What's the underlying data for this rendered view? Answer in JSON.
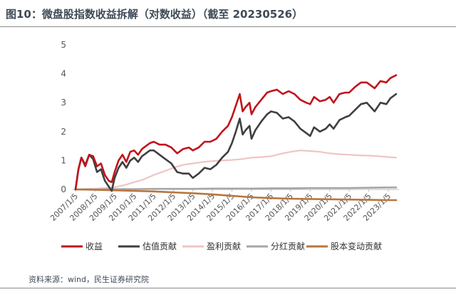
{
  "title": "图10：微盘股指数收益拆解（对数收益）（截至 20230526）",
  "source": "资料来源：wind，民生证券研究院",
  "chart_data": {
    "type": "line",
    "title": "图10：微盘股指数收益拆解（对数收益）（截至 20230526）",
    "xlabel": "",
    "ylabel": "",
    "ylim": [
      0,
      5
    ],
    "yticks": [
      "0",
      "1",
      "2",
      "3",
      "4",
      "5"
    ],
    "x_tick_labels": [
      "2007/1/5",
      "2008/1/5",
      "2009/1/5",
      "2010/1/5",
      "2011/1/5",
      "2012/1/5",
      "2013/1/5",
      "2014/1/5",
      "2015/1/5",
      "2016/1/5",
      "2017/1/5",
      "2018/1/5",
      "2019/1/5",
      "2020/1/5",
      "2021/1/5",
      "2022/1/5",
      "2023/1/5"
    ],
    "x_start": 2007.0,
    "x_end": 2023.4,
    "grid": false,
    "legend_position": "bottom",
    "series": [
      {
        "name": "收益",
        "color": "#c0141c",
        "width": 2.6,
        "points": [
          [
            2007.0,
            0.0
          ],
          [
            2007.15,
            0.7
          ],
          [
            2007.3,
            1.1
          ],
          [
            2007.5,
            0.8
          ],
          [
            2007.7,
            1.2
          ],
          [
            2007.9,
            1.15
          ],
          [
            2008.1,
            0.8
          ],
          [
            2008.3,
            0.9
          ],
          [
            2008.5,
            0.5
          ],
          [
            2008.7,
            0.3
          ],
          [
            2008.85,
            0.25
          ],
          [
            2009.0,
            0.6
          ],
          [
            2009.2,
            1.0
          ],
          [
            2009.4,
            1.2
          ],
          [
            2009.6,
            0.95
          ],
          [
            2009.8,
            1.3
          ],
          [
            2010.0,
            1.35
          ],
          [
            2010.2,
            1.2
          ],
          [
            2010.4,
            1.4
          ],
          [
            2010.6,
            1.5
          ],
          [
            2010.8,
            1.6
          ],
          [
            2011.0,
            1.65
          ],
          [
            2011.3,
            1.55
          ],
          [
            2011.6,
            1.55
          ],
          [
            2011.9,
            1.45
          ],
          [
            2012.2,
            1.25
          ],
          [
            2012.5,
            1.4
          ],
          [
            2012.8,
            1.45
          ],
          [
            2013.0,
            1.35
          ],
          [
            2013.3,
            1.45
          ],
          [
            2013.6,
            1.65
          ],
          [
            2013.9,
            1.65
          ],
          [
            2014.2,
            1.75
          ],
          [
            2014.5,
            2.0
          ],
          [
            2014.8,
            2.2
          ],
          [
            2015.0,
            2.5
          ],
          [
            2015.2,
            2.9
          ],
          [
            2015.4,
            3.3
          ],
          [
            2015.55,
            2.7
          ],
          [
            2015.7,
            2.85
          ],
          [
            2015.9,
            3.0
          ],
          [
            2016.0,
            2.6
          ],
          [
            2016.2,
            2.85
          ],
          [
            2016.5,
            3.1
          ],
          [
            2016.8,
            3.35
          ],
          [
            2017.0,
            3.4
          ],
          [
            2017.3,
            3.45
          ],
          [
            2017.6,
            3.3
          ],
          [
            2017.9,
            3.4
          ],
          [
            2018.2,
            3.3
          ],
          [
            2018.5,
            3.1
          ],
          [
            2018.8,
            3.0
          ],
          [
            2019.0,
            2.95
          ],
          [
            2019.2,
            3.2
          ],
          [
            2019.5,
            3.05
          ],
          [
            2019.8,
            3.1
          ],
          [
            2020.0,
            3.2
          ],
          [
            2020.2,
            3.0
          ],
          [
            2020.5,
            3.3
          ],
          [
            2020.8,
            3.35
          ],
          [
            2021.0,
            3.35
          ],
          [
            2021.3,
            3.55
          ],
          [
            2021.6,
            3.7
          ],
          [
            2021.9,
            3.7
          ],
          [
            2022.1,
            3.6
          ],
          [
            2022.3,
            3.5
          ],
          [
            2022.6,
            3.75
          ],
          [
            2022.9,
            3.7
          ],
          [
            2023.1,
            3.85
          ],
          [
            2023.4,
            3.95
          ]
        ]
      },
      {
        "name": "估值贡献",
        "color": "#3f3f3f",
        "width": 2.6,
        "points": [
          [
            2007.0,
            0.0
          ],
          [
            2007.15,
            0.7
          ],
          [
            2007.3,
            1.1
          ],
          [
            2007.5,
            0.85
          ],
          [
            2007.7,
            1.2
          ],
          [
            2007.9,
            1.05
          ],
          [
            2008.1,
            0.6
          ],
          [
            2008.3,
            0.7
          ],
          [
            2008.5,
            0.3
          ],
          [
            2008.7,
            0.1
          ],
          [
            2008.85,
            -0.05
          ],
          [
            2009.0,
            0.4
          ],
          [
            2009.2,
            0.75
          ],
          [
            2009.4,
            0.95
          ],
          [
            2009.6,
            0.75
          ],
          [
            2009.8,
            1.0
          ],
          [
            2010.0,
            1.1
          ],
          [
            2010.2,
            0.95
          ],
          [
            2010.4,
            1.15
          ],
          [
            2010.6,
            1.25
          ],
          [
            2010.8,
            1.35
          ],
          [
            2011.0,
            1.35
          ],
          [
            2011.3,
            1.2
          ],
          [
            2011.6,
            1.05
          ],
          [
            2011.9,
            0.9
          ],
          [
            2012.2,
            0.6
          ],
          [
            2012.5,
            0.55
          ],
          [
            2012.8,
            0.55
          ],
          [
            2013.0,
            0.4
          ],
          [
            2013.3,
            0.55
          ],
          [
            2013.6,
            0.75
          ],
          [
            2013.9,
            0.7
          ],
          [
            2014.2,
            0.85
          ],
          [
            2014.5,
            1.1
          ],
          [
            2014.8,
            1.3
          ],
          [
            2015.0,
            1.6
          ],
          [
            2015.2,
            2.0
          ],
          [
            2015.4,
            2.45
          ],
          [
            2015.55,
            1.9
          ],
          [
            2015.7,
            2.05
          ],
          [
            2015.9,
            2.2
          ],
          [
            2016.0,
            1.75
          ],
          [
            2016.2,
            2.05
          ],
          [
            2016.5,
            2.35
          ],
          [
            2016.8,
            2.6
          ],
          [
            2017.0,
            2.7
          ],
          [
            2017.3,
            2.65
          ],
          [
            2017.6,
            2.45
          ],
          [
            2017.9,
            2.5
          ],
          [
            2018.2,
            2.35
          ],
          [
            2018.5,
            2.1
          ],
          [
            2018.8,
            1.95
          ],
          [
            2019.0,
            1.85
          ],
          [
            2019.2,
            2.15
          ],
          [
            2019.5,
            2.0
          ],
          [
            2019.8,
            2.1
          ],
          [
            2020.0,
            2.25
          ],
          [
            2020.2,
            2.1
          ],
          [
            2020.5,
            2.4
          ],
          [
            2020.8,
            2.5
          ],
          [
            2021.0,
            2.55
          ],
          [
            2021.3,
            2.75
          ],
          [
            2021.6,
            2.95
          ],
          [
            2021.9,
            3.0
          ],
          [
            2022.1,
            2.85
          ],
          [
            2022.3,
            2.7
          ],
          [
            2022.6,
            3.0
          ],
          [
            2022.9,
            2.95
          ],
          [
            2023.1,
            3.15
          ],
          [
            2023.4,
            3.3
          ]
        ]
      },
      {
        "name": "盈利贡献",
        "color": "#f0c4c4",
        "width": 2.2,
        "points": [
          [
            2007.0,
            0.0
          ],
          [
            2007.5,
            0.02
          ],
          [
            2008.0,
            0.03
          ],
          [
            2008.5,
            0.05
          ],
          [
            2009.0,
            0.08
          ],
          [
            2009.5,
            0.15
          ],
          [
            2010.0,
            0.25
          ],
          [
            2010.5,
            0.35
          ],
          [
            2011.0,
            0.5
          ],
          [
            2011.5,
            0.62
          ],
          [
            2012.0,
            0.75
          ],
          [
            2012.5,
            0.85
          ],
          [
            2013.0,
            0.9
          ],
          [
            2013.5,
            0.95
          ],
          [
            2014.0,
            0.98
          ],
          [
            2014.5,
            1.0
          ],
          [
            2015.0,
            1.02
          ],
          [
            2015.5,
            1.05
          ],
          [
            2016.0,
            1.1
          ],
          [
            2016.5,
            1.12
          ],
          [
            2017.0,
            1.15
          ],
          [
            2017.3,
            1.2
          ],
          [
            2017.6,
            1.25
          ],
          [
            2018.0,
            1.3
          ],
          [
            2018.5,
            1.35
          ],
          [
            2019.0,
            1.33
          ],
          [
            2019.5,
            1.3
          ],
          [
            2020.0,
            1.25
          ],
          [
            2020.5,
            1.22
          ],
          [
            2021.0,
            1.2
          ],
          [
            2021.5,
            1.18
          ],
          [
            2022.0,
            1.17
          ],
          [
            2022.5,
            1.15
          ],
          [
            2023.0,
            1.12
          ],
          [
            2023.4,
            1.1
          ]
        ]
      },
      {
        "name": "分红贡献",
        "color": "#a6a6a6",
        "width": 2.6,
        "points": [
          [
            2007.0,
            0.0
          ],
          [
            2008.0,
            0.0
          ],
          [
            2009.0,
            0.01
          ],
          [
            2010.0,
            0.01
          ],
          [
            2011.0,
            0.02
          ],
          [
            2012.0,
            0.02
          ],
          [
            2013.0,
            0.02
          ],
          [
            2014.0,
            0.03
          ],
          [
            2015.0,
            0.03
          ],
          [
            2016.0,
            0.03
          ],
          [
            2017.0,
            0.04
          ],
          [
            2018.0,
            0.04
          ],
          [
            2019.0,
            0.05
          ],
          [
            2020.0,
            0.05
          ],
          [
            2021.0,
            0.05
          ],
          [
            2022.0,
            0.06
          ],
          [
            2023.0,
            0.07
          ],
          [
            2023.4,
            0.07
          ]
        ]
      },
      {
        "name": "股本变动贡献",
        "color": "#b8763c",
        "width": 2.6,
        "points": [
          [
            2007.0,
            0.0
          ],
          [
            2008.0,
            -0.01
          ],
          [
            2009.0,
            -0.03
          ],
          [
            2010.0,
            -0.05
          ],
          [
            2011.0,
            -0.07
          ],
          [
            2012.0,
            -0.1
          ],
          [
            2013.0,
            -0.13
          ],
          [
            2014.0,
            -0.17
          ],
          [
            2015.0,
            -0.22
          ],
          [
            2016.0,
            -0.27
          ],
          [
            2017.0,
            -0.3
          ],
          [
            2018.0,
            -0.32
          ],
          [
            2019.0,
            -0.33
          ],
          [
            2020.0,
            -0.34
          ],
          [
            2021.0,
            -0.35
          ],
          [
            2022.0,
            -0.36
          ],
          [
            2023.0,
            -0.37
          ],
          [
            2023.4,
            -0.37
          ]
        ]
      }
    ]
  }
}
